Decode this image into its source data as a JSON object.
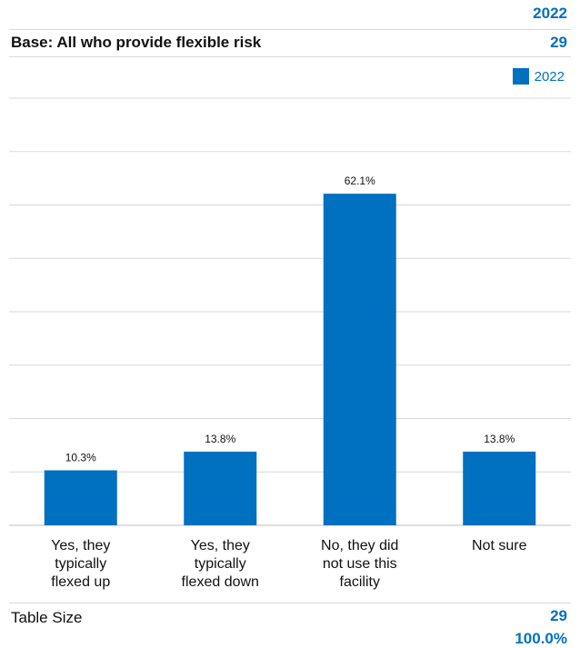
{
  "header": {
    "year": "2022",
    "base_label": "Base: All who provide flexible risk",
    "base_value": "29"
  },
  "legend": {
    "label": "2022",
    "color": "#0070c0"
  },
  "chart_data": {
    "type": "bar",
    "categories": [
      "Yes, they typically flexed up",
      "Yes, they typically flexed down",
      "No, they did not use this facility",
      "Not sure"
    ],
    "category_lines": [
      [
        "Yes, they",
        "typically",
        "flexed up"
      ],
      [
        "Yes, they",
        "typically",
        "flexed down"
      ],
      [
        "No, they did",
        "not use this",
        "facility"
      ],
      [
        "Not sure"
      ]
    ],
    "series": [
      {
        "name": "2022",
        "values": [
          10.3,
          13.8,
          62.1,
          13.8
        ],
        "labels": [
          "10.3%",
          "13.8%",
          "62.1%",
          "13.8%"
        ]
      }
    ],
    "ylim": [
      0,
      80
    ],
    "grid": true,
    "legend_position": "top-right",
    "bar_color": "#0070c0"
  },
  "footer": {
    "table_size_label": "Table Size",
    "table_size_value": "29",
    "total_pct": "100.0%"
  }
}
